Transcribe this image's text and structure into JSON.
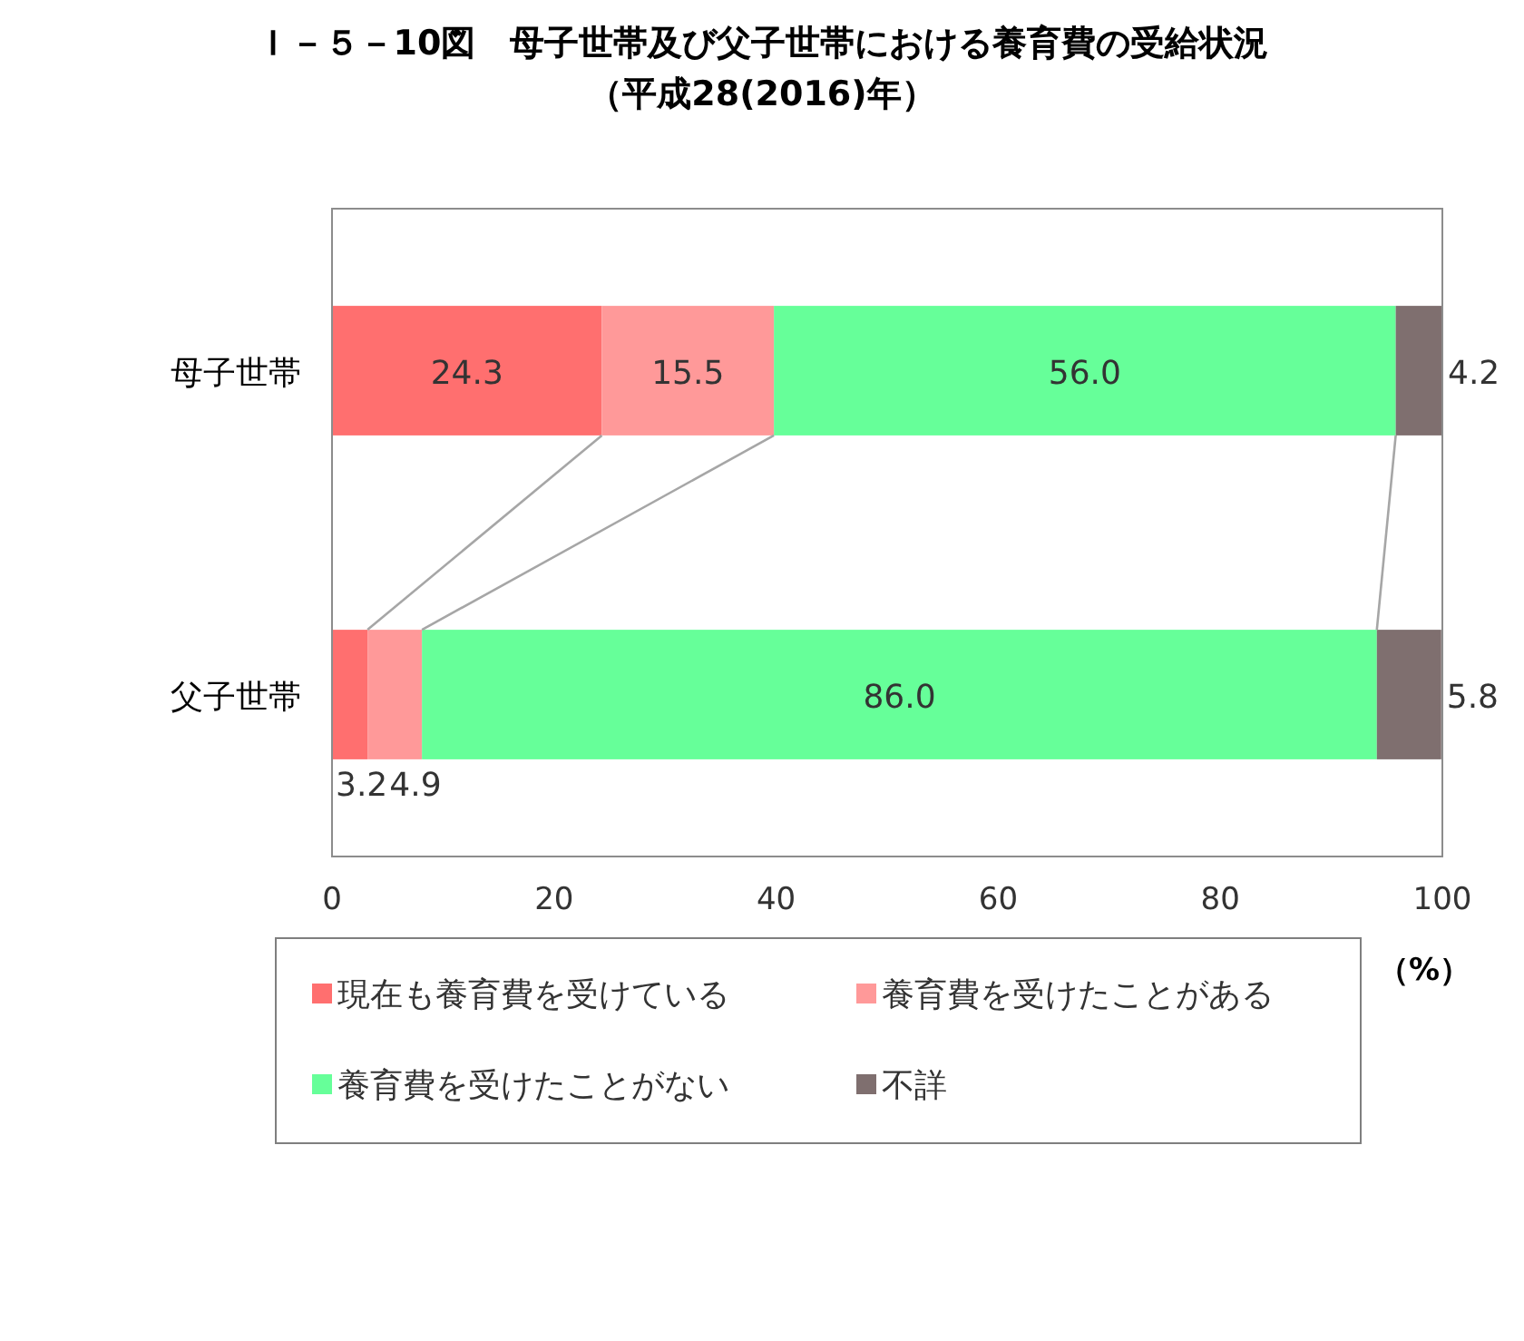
{
  "chart_data": {
    "type": "bar",
    "orientation": "horizontal",
    "stacked": true,
    "title": "Ｉ－５－10図　母子世帯及び父子世帯における養育費の受給状況",
    "subtitle": "（平成28(2016)年）",
    "xlabel": "（%）",
    "categories": [
      "母子世帯",
      "父子世帯"
    ],
    "series": [
      {
        "name": "現在も養育費を受けている",
        "color": "#ff6f6f",
        "values": [
          24.3,
          3.2
        ],
        "value_labels": [
          "24.3",
          "3.2"
        ]
      },
      {
        "name": "養育費を受けたことがある",
        "color": "#ff9999",
        "values": [
          15.5,
          4.9
        ],
        "value_labels": [
          "15.5",
          "4.9"
        ]
      },
      {
        "name": "養育費を受けたことがない",
        "color": "#66ff99",
        "values": [
          56.0,
          86.0
        ],
        "value_labels": [
          "56.0",
          "86.0"
        ]
      },
      {
        "name": "不詳",
        "color": "#7f6f6f",
        "values": [
          4.2,
          5.8
        ],
        "value_labels": [
          "4.2",
          "5.8"
        ]
      }
    ],
    "xlim": [
      0,
      100
    ],
    "xticks": [
      0,
      20,
      40,
      60,
      80,
      100
    ],
    "grid": false,
    "legend": "bottom"
  }
}
